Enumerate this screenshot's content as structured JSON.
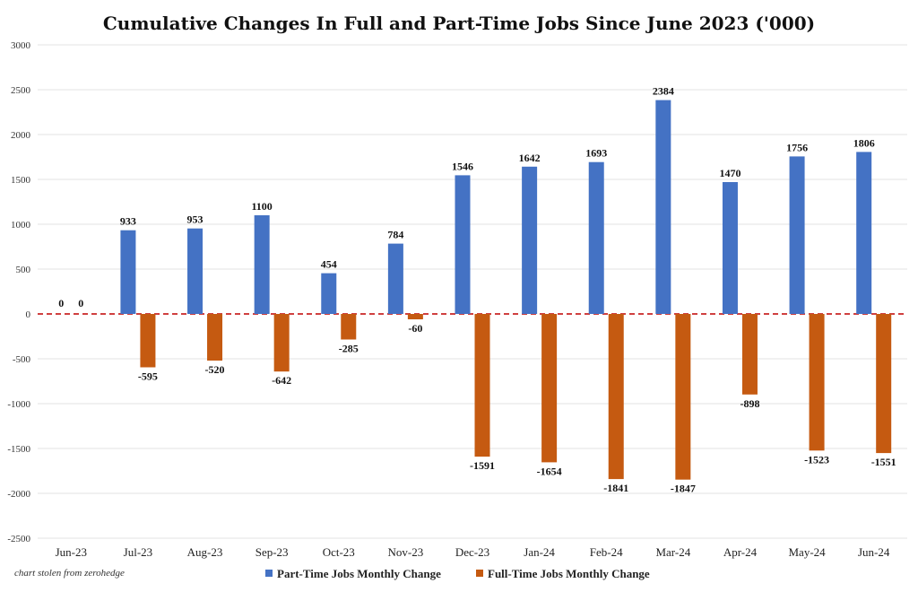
{
  "chart_data": {
    "type": "bar",
    "title": "Cumulative Changes In Full and Part-Time Jobs Since June 2023 ('000)",
    "categories": [
      "Jun-23",
      "Jul-23",
      "Aug-23",
      "Sep-23",
      "Oct-23",
      "Nov-23",
      "Dec-23",
      "Jan-24",
      "Feb-24",
      "Mar-24",
      "Apr-24",
      "May-24",
      "Jun-24"
    ],
    "series": [
      {
        "name": "Part-Time Jobs Monthly Change",
        "color": "#4472c4",
        "values": [
          0,
          933,
          953,
          1100,
          454,
          784,
          1546,
          1642,
          1693,
          2384,
          1470,
          1756,
          1806
        ]
      },
      {
        "name": "Full-Time Jobs Monthly Change",
        "color": "#c55a11",
        "values": [
          0,
          -595,
          -520,
          -642,
          -285,
          -60,
          -1591,
          -1654,
          -1841,
          -1847,
          -898,
          -1523,
          -1551
        ]
      }
    ],
    "ylim": [
      -2500,
      3000
    ],
    "yticks": [
      3000,
      2500,
      2000,
      1500,
      1000,
      500,
      0,
      -500,
      -1000,
      -1500,
      -2000,
      -2500
    ],
    "grid": true,
    "zero_line": {
      "color": "#c00000",
      "style": "dashed"
    },
    "legend_position": "bottom",
    "data_labels": true
  },
  "credit": "chart stolen from zerohedge"
}
